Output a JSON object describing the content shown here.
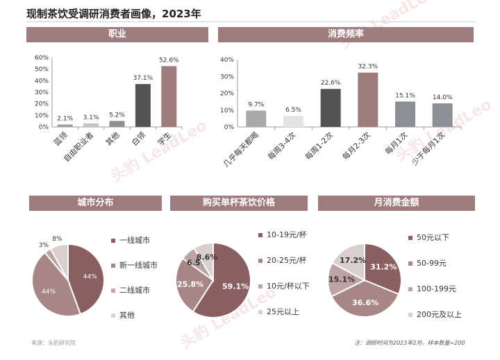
{
  "title": "现制茶饮受调研消费者画像，2023年",
  "watermark": "头豹 LeadLeo",
  "footer": {
    "source": "来源：头豹研究院",
    "note": "注：调研时间为2023年2月，样本数量=200"
  },
  "panels": {
    "occupation": "职业",
    "frequency": "消费频率",
    "city": "城市分布",
    "price": "购买单杯茶饮价格",
    "spend": "月消费金额"
  },
  "chart_data": [
    {
      "type": "bar",
      "title": "职业",
      "categories": [
        "蓝领",
        "自由职业者",
        "其他",
        "白领",
        "学生"
      ],
      "values": [
        2.1,
        3.1,
        5.2,
        37.1,
        52.6
      ],
      "value_labels": [
        "2.1%",
        "3.1%",
        "5.2%",
        "37.1%",
        "52.6%"
      ],
      "colors": [
        "#9aa0a6",
        "#bfc3c6",
        "#8a9096",
        "#545454",
        "#9e7b7c"
      ],
      "yticks": [
        "0%",
        "10%",
        "20%",
        "30%",
        "40%",
        "50%",
        "60%"
      ],
      "ylim": [
        0,
        60
      ]
    },
    {
      "type": "bar",
      "title": "消费频率",
      "categories": [
        "几乎每天都喝",
        "每周3-4次",
        "每周1-2次",
        "每月2-3次",
        "每月1次",
        "少于每月1次"
      ],
      "values": [
        9.7,
        6.5,
        22.6,
        32.3,
        15.1,
        14.0
      ],
      "value_labels": [
        "9.7%",
        "6.5%",
        "22.6%",
        "32.3%",
        "15.1%",
        "14.0%"
      ],
      "colors": [
        "#a9a9a9",
        "#e3e3e3",
        "#545454",
        "#9e7b7c",
        "#8a9096",
        "#8a9096"
      ],
      "yticks": [
        "0%",
        "10%",
        "20%",
        "30%",
        "40%"
      ],
      "ylim": [
        0,
        40
      ]
    },
    {
      "type": "pie",
      "title": "城市分布",
      "labels": [
        "一线城市",
        "新一线城市",
        "二线城市",
        "其他"
      ],
      "values": [
        44,
        44,
        3,
        8
      ],
      "value_labels": [
        "44%",
        "44%",
        "3%",
        "8%"
      ],
      "colors": [
        "#8a5f61",
        "#a88687",
        "#bfa2a3",
        "#d9cfcf"
      ]
    },
    {
      "type": "pie",
      "title": "购买单杯茶饮价格",
      "labels": [
        "10-19元/杯",
        "20-25元/杯",
        "10元/杯以下",
        "25元以上"
      ],
      "values": [
        59.1,
        25.8,
        6.5,
        8.6
      ],
      "value_labels": [
        "59.1%",
        "25.8%",
        "6.5%",
        "8.6%"
      ],
      "colors": [
        "#8a5f61",
        "#a88687",
        "#bfa2a3",
        "#d9cfcf"
      ]
    },
    {
      "type": "pie",
      "title": "月消费金额",
      "labels": [
        "50元以下",
        "50-99元",
        "100-199元",
        "200元及以上"
      ],
      "values": [
        31.2,
        36.6,
        15.1,
        17.2
      ],
      "value_labels": [
        "31.2%",
        "36.6%",
        "15.1%",
        "17.2%"
      ],
      "colors": [
        "#8a5f61",
        "#a88687",
        "#bfa2a3",
        "#d9cfcf"
      ]
    }
  ]
}
